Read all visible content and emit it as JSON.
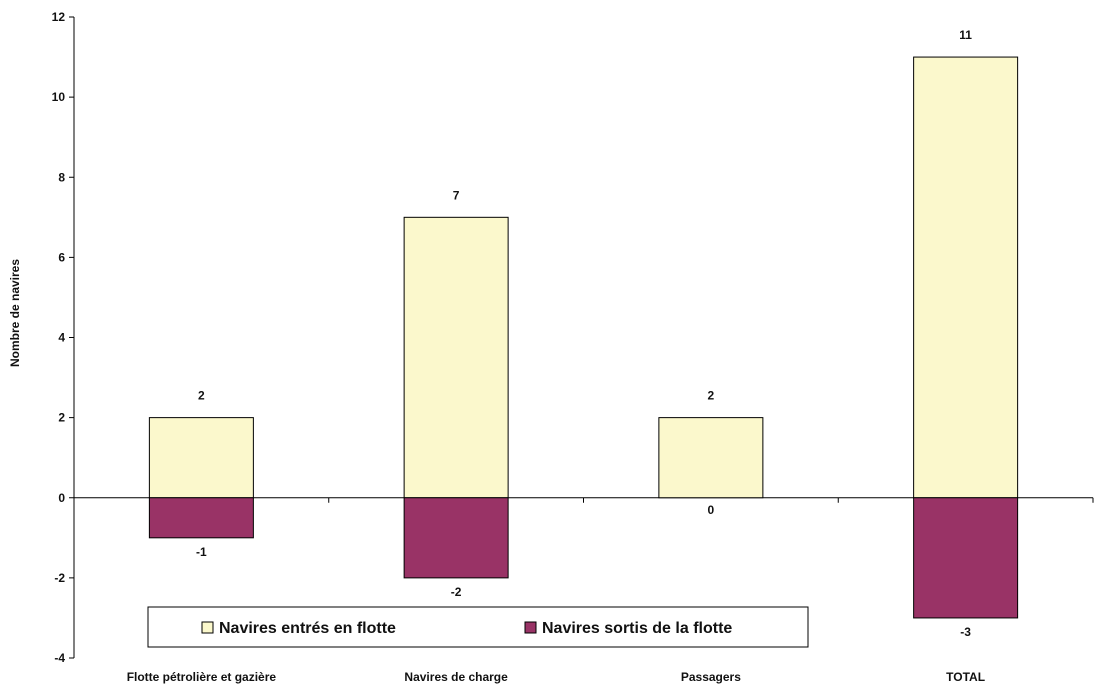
{
  "chart_data": {
    "type": "bar",
    "title": "",
    "xlabel": "",
    "ylabel": "Nombre de navires",
    "ylim": [
      -4,
      12
    ],
    "yticks": [
      -4,
      -2,
      0,
      2,
      4,
      6,
      8,
      10,
      12
    ],
    "grid": false,
    "legend_position": "bottom",
    "categories": [
      "Flotte pétrolière et gazière",
      "Navires de charge",
      "Passagers",
      "TOTAL"
    ],
    "series": [
      {
        "name": "Navires entrés en flotte",
        "values": [
          2,
          7,
          2,
          11
        ],
        "color": "#fbf8cc"
      },
      {
        "name": "Navires sortis de la flotte",
        "values": [
          -1,
          -2,
          0,
          -3
        ],
        "color": "#993366"
      }
    ]
  }
}
